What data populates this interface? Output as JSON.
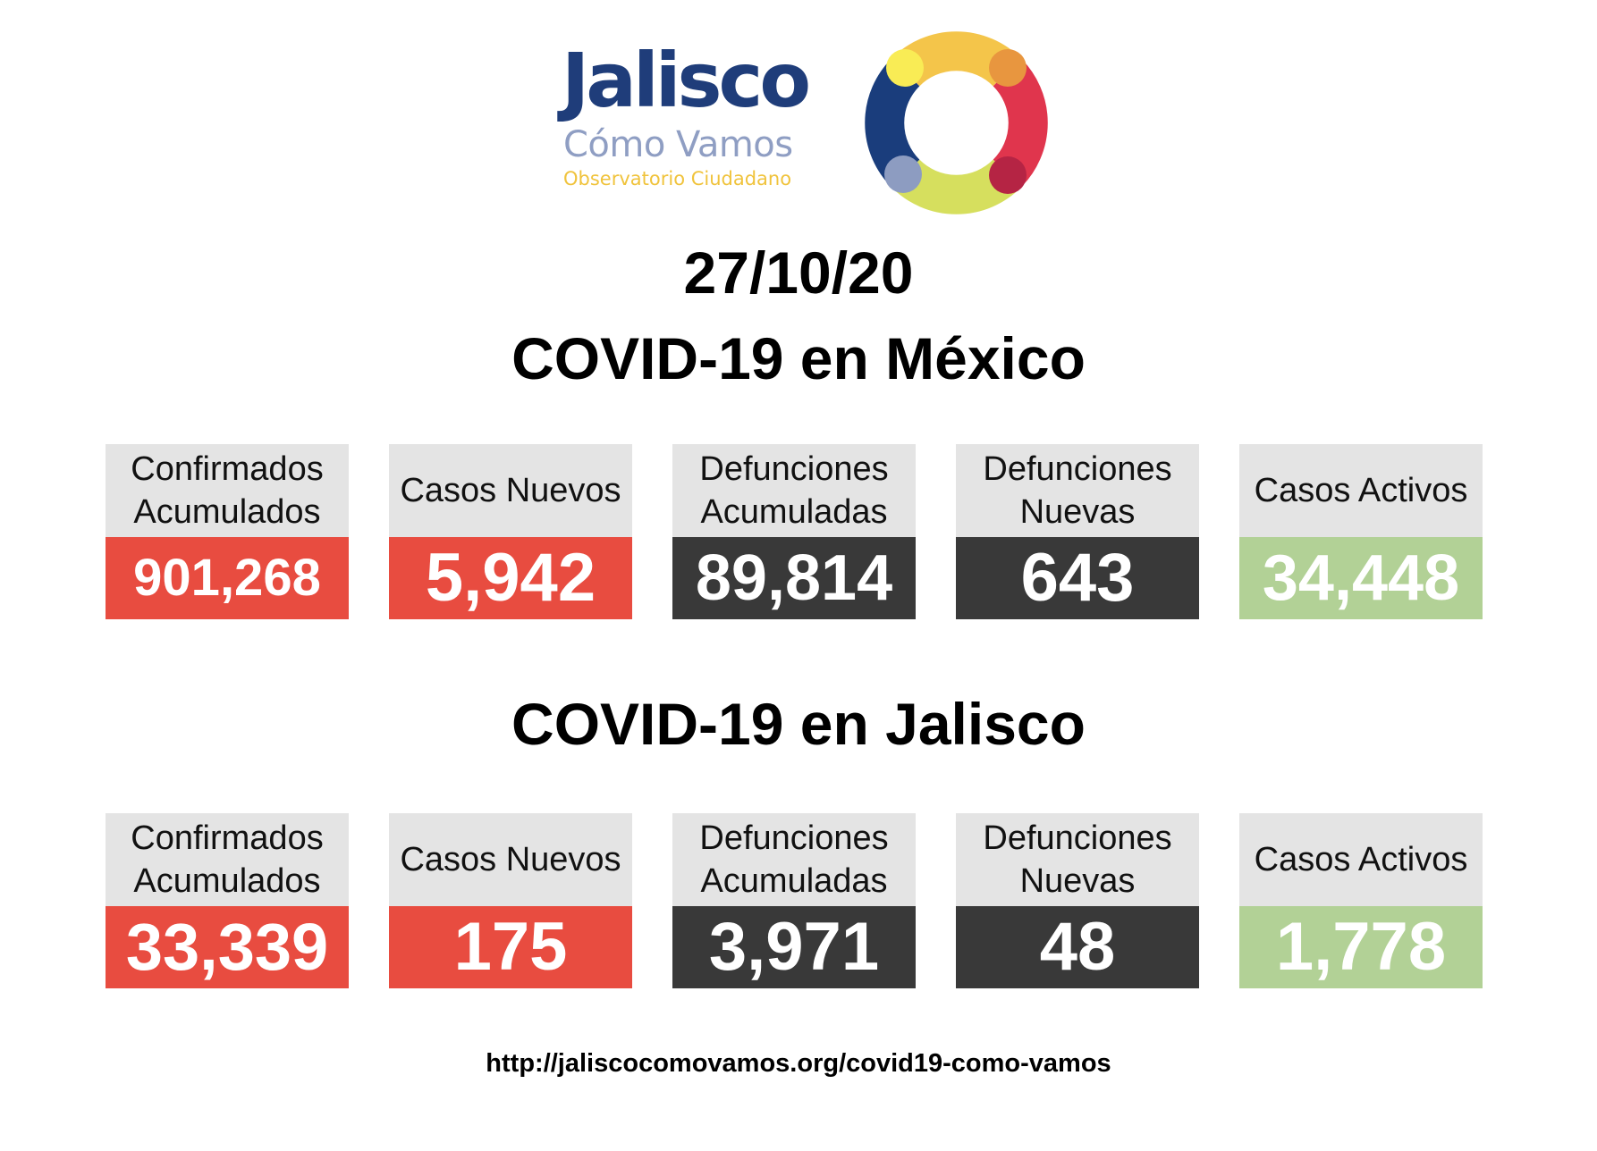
{
  "logo": {
    "title": "Jalisco",
    "subtitle": "Cómo Vamos",
    "tagline": "Observatorio Ciudadano",
    "icon": "ring-logo-icon",
    "colors": {
      "title": "#1f3d7a",
      "subtitle": "#8f9ec3",
      "tagline": "#f0c33c",
      "ring": [
        "#f4c54a",
        "#e0354d",
        "#d6df5e",
        "#1a3d7c"
      ]
    }
  },
  "date": "27/10/20",
  "sections": [
    {
      "title": "COVID-19 en México",
      "cards": [
        {
          "label": "Confirmados\nAcumulados",
          "value": "901,268",
          "color": "#e84c40"
        },
        {
          "label": "Casos Nuevos",
          "value": "5,942",
          "color": "#e84c40"
        },
        {
          "label": "Defunciones\nAcumuladas",
          "value": "89,814",
          "color": "#393939"
        },
        {
          "label": "Defunciones\nNuevas",
          "value": "643",
          "color": "#393939"
        },
        {
          "label": "Casos Activos",
          "value": "34,448",
          "color": "#b2d196"
        }
      ]
    },
    {
      "title": "COVID-19 en Jalisco",
      "cards": [
        {
          "label": "Confirmados\nAcumulados",
          "value": "33,339",
          "color": "#e84c40"
        },
        {
          "label": "Casos Nuevos",
          "value": "175",
          "color": "#e84c40"
        },
        {
          "label": "Defunciones\nAcumuladas",
          "value": "3,971",
          "color": "#393939"
        },
        {
          "label": "Defunciones\nNuevas",
          "value": "48",
          "color": "#393939"
        },
        {
          "label": "Casos Activos",
          "value": "1,778",
          "color": "#b2d196"
        }
      ]
    }
  ],
  "footer": {
    "url": "http://jaliscocomovamos.org/covid19-como-vamos"
  }
}
